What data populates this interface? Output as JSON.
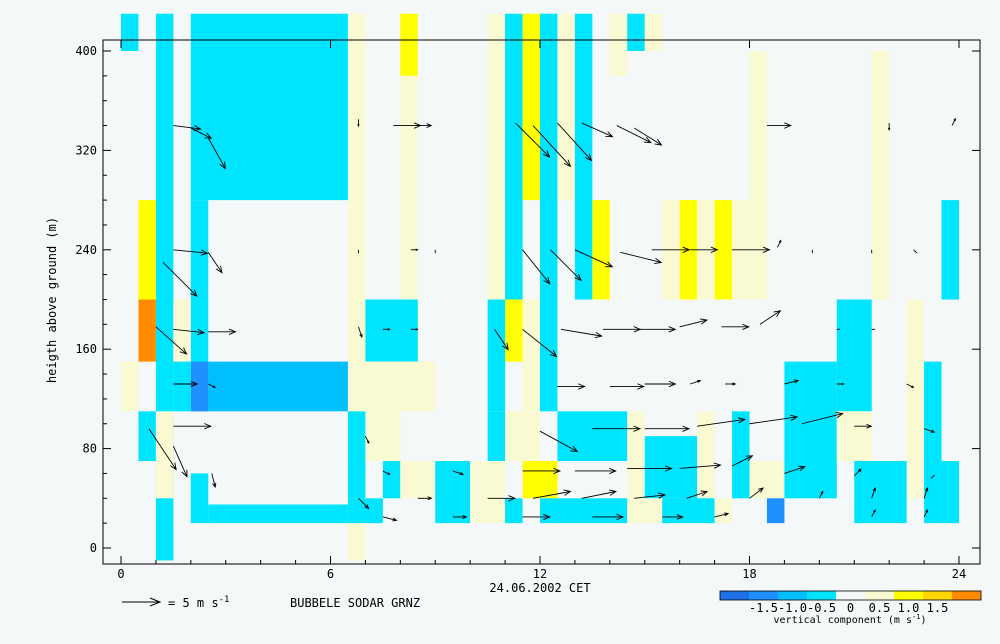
{
  "chart_data": {
    "type": "heatmap",
    "title": "",
    "xlabel": "24.06.2002 CET",
    "ylabel": "heigth above ground (m)",
    "xlim": [
      -0.5,
      24.5
    ],
    "ylim": [
      -10,
      410
    ],
    "x_ticks": [
      0,
      6,
      12,
      18,
      24
    ],
    "y_ticks": [
      0,
      80,
      160,
      240,
      320,
      400
    ],
    "footer_left": "BUBBELE SODAR GRNZ",
    "vector_key": {
      "label": "= 5 m s",
      "superscript": "-1",
      "magnitude": 5
    },
    "colorbar": {
      "label": "vertical component (m s",
      "label_superscript": "-1",
      "label_suffix": ")",
      "tick_labels": [
        "-1.5",
        "-1.0",
        "-0.5",
        "0",
        "0.5",
        "1.0",
        "1.5"
      ],
      "bins": [
        {
          "max": -1.75,
          "color": "#1f6fe8"
        },
        {
          "max": -1.25,
          "color": "#1e90ff"
        },
        {
          "max": -0.75,
          "color": "#00bfff"
        },
        {
          "max": -0.25,
          "color": "#00e5ff"
        },
        {
          "max": 0.25,
          "color": "#f4f8f8"
        },
        {
          "max": 0.75,
          "color": "#fafad2"
        },
        {
          "max": 1.25,
          "color": "#ffff00"
        },
        {
          "max": 1.75,
          "color": "#ffd700"
        },
        {
          "max": 99,
          "color": "#ff8c00"
        }
      ],
      "swatch_colors": [
        "#1f6fe8",
        "#1e90ff",
        "#00bfff",
        "#00e5ff",
        "#f4f8f8",
        "#fafad2",
        "#ffff00",
        "#ffd700",
        "#ff8c00"
      ]
    },
    "vertical_component_cells": [
      {
        "t0": 0.0,
        "t1": 0.5,
        "z0": 400,
        "z1": 430,
        "w": -0.6
      },
      {
        "t0": 0.5,
        "t1": 1.0,
        "z0": 400,
        "z1": 430,
        "w": 0.0
      },
      {
        "t0": 1.0,
        "t1": 1.5,
        "z0": -10,
        "z1": 430,
        "w": -0.6
      },
      {
        "t0": 2.0,
        "t1": 6.5,
        "z0": 280,
        "z1": 430,
        "w": -0.6
      },
      {
        "t0": 2.0,
        "t1": 2.5,
        "z0": 110,
        "z1": 280,
        "w": -0.6
      },
      {
        "t0": 0.5,
        "t1": 1.0,
        "z0": 200,
        "z1": 280,
        "w": 1.0
      },
      {
        "t0": 0.5,
        "t1": 1.0,
        "z0": 150,
        "z1": 200,
        "w": 2.0
      },
      {
        "t0": 1.5,
        "t1": 2.0,
        "z0": 150,
        "z1": 200,
        "w": 0.5
      },
      {
        "t0": 2.0,
        "t1": 2.5,
        "z0": 110,
        "z1": 150,
        "w": -1.5
      },
      {
        "t0": 2.5,
        "t1": 6.5,
        "z0": 110,
        "z1": 150,
        "w": -1.0
      },
      {
        "t0": 1.5,
        "t1": 2.0,
        "z0": 110,
        "z1": 150,
        "w": -0.6
      },
      {
        "t0": 0.0,
        "t1": 0.5,
        "z0": 110,
        "z1": 150,
        "w": 0.5
      },
      {
        "t0": 0.5,
        "t1": 1.0,
        "z0": 70,
        "z1": 110,
        "w": -0.6
      },
      {
        "t0": 1.0,
        "t1": 1.5,
        "z0": 40,
        "z1": 110,
        "w": 0.5
      },
      {
        "t0": 2.0,
        "t1": 2.5,
        "z0": 20,
        "z1": 60,
        "w": -0.6
      },
      {
        "t0": 2.5,
        "t1": 6.5,
        "z0": 20,
        "z1": 35,
        "w": -0.6
      },
      {
        "t0": 6.5,
        "t1": 7.0,
        "z0": -10,
        "z1": 430,
        "w": 0.5
      },
      {
        "t0": 7.0,
        "t1": 8.0,
        "z0": -10,
        "z1": 430,
        "w": 0.0
      },
      {
        "t0": 8.0,
        "t1": 8.5,
        "z0": 380,
        "z1": 430,
        "w": 1.0
      },
      {
        "t0": 8.0,
        "t1": 8.5,
        "z0": 150,
        "z1": 380,
        "w": 0.5
      },
      {
        "t0": 7.0,
        "t1": 8.5,
        "z0": 150,
        "z1": 200,
        "w": -0.6
      },
      {
        "t0": 6.5,
        "t1": 9.0,
        "z0": 110,
        "z1": 150,
        "w": 0.5
      },
      {
        "t0": 6.5,
        "t1": 7.0,
        "z0": 40,
        "z1": 110,
        "w": -0.6
      },
      {
        "t0": 7.0,
        "t1": 8.0,
        "z0": 70,
        "z1": 110,
        "w": 0.5
      },
      {
        "t0": 6.5,
        "t1": 7.5,
        "z0": 20,
        "z1": 40,
        "w": -0.6
      },
      {
        "t0": 7.5,
        "t1": 8.0,
        "z0": 40,
        "z1": 70,
        "w": -0.6
      },
      {
        "t0": 8.0,
        "t1": 9.0,
        "z0": 40,
        "z1": 70,
        "w": 0.5
      },
      {
        "t0": 9.0,
        "t1": 10.0,
        "z0": 20,
        "z1": 70,
        "w": -0.6
      },
      {
        "t0": 10.5,
        "t1": 11.0,
        "z0": 200,
        "z1": 430,
        "w": 0.5
      },
      {
        "t0": 11.0,
        "t1": 11.5,
        "z0": 200,
        "z1": 430,
        "w": -0.6
      },
      {
        "t0": 11.5,
        "t1": 12.0,
        "z0": 280,
        "z1": 430,
        "w": 1.0
      },
      {
        "t0": 12.0,
        "t1": 12.5,
        "z0": 110,
        "z1": 430,
        "w": -0.6
      },
      {
        "t0": 12.5,
        "t1": 13.0,
        "z0": 280,
        "z1": 430,
        "w": 0.5
      },
      {
        "t0": 13.0,
        "t1": 13.5,
        "z0": 200,
        "z1": 430,
        "w": -0.6
      },
      {
        "t0": 14.0,
        "t1": 14.5,
        "z0": 380,
        "z1": 430,
        "w": 0.5
      },
      {
        "t0": 14.5,
        "t1": 15.0,
        "z0": 400,
        "z1": 430,
        "w": -0.6
      },
      {
        "t0": 15.0,
        "t1": 15.5,
        "z0": 400,
        "z1": 430,
        "w": 0.5
      },
      {
        "t0": 13.5,
        "t1": 14.0,
        "z0": 200,
        "z1": 280,
        "w": 1.0
      },
      {
        "t0": 11.0,
        "t1": 11.5,
        "z0": 150,
        "z1": 200,
        "w": 1.0
      },
      {
        "t0": 10.5,
        "t1": 11.0,
        "z0": 110,
        "z1": 200,
        "w": -0.6
      },
      {
        "t0": 11.5,
        "t1": 12.0,
        "z0": 110,
        "z1": 200,
        "w": 0.5
      },
      {
        "t0": 16.0,
        "t1": 16.5,
        "z0": 200,
        "z1": 280,
        "w": 1.0
      },
      {
        "t0": 17.0,
        "t1": 17.5,
        "z0": 200,
        "z1": 280,
        "w": 1.0
      },
      {
        "t0": 15.5,
        "t1": 16.0,
        "z0": 200,
        "z1": 280,
        "w": 0.5
      },
      {
        "t0": 16.5,
        "t1": 17.0,
        "z0": 200,
        "z1": 280,
        "w": 0.5
      },
      {
        "t0": 17.5,
        "t1": 18.0,
        "z0": 200,
        "z1": 280,
        "w": 0.5
      },
      {
        "t0": 18.0,
        "t1": 18.5,
        "z0": 200,
        "z1": 400,
        "w": 0.5
      },
      {
        "t0": 21.5,
        "t1": 22.0,
        "z0": 200,
        "z1": 400,
        "w": 0.5
      },
      {
        "t0": 23.5,
        "t1": 24.0,
        "z0": 200,
        "z1": 280,
        "w": -0.6
      },
      {
        "t0": 20.5,
        "t1": 21.5,
        "z0": 110,
        "z1": 200,
        "w": -0.6
      },
      {
        "t0": 22.5,
        "t1": 23.0,
        "z0": 40,
        "z1": 200,
        "w": 0.5
      },
      {
        "t0": 10.5,
        "t1": 11.0,
        "z0": 70,
        "z1": 110,
        "w": -0.6
      },
      {
        "t0": 11.0,
        "t1": 12.0,
        "z0": 70,
        "z1": 110,
        "w": 0.5
      },
      {
        "t0": 12.5,
        "t1": 14.5,
        "z0": 70,
        "z1": 110,
        "w": -0.6
      },
      {
        "t0": 14.5,
        "t1": 15.0,
        "z0": 40,
        "z1": 110,
        "w": 0.5
      },
      {
        "t0": 15.0,
        "t1": 16.5,
        "z0": 40,
        "z1": 90,
        "w": -0.6
      },
      {
        "t0": 16.5,
        "t1": 17.0,
        "z0": 40,
        "z1": 110,
        "w": 0.5
      },
      {
        "t0": 17.5,
        "t1": 18.0,
        "z0": 40,
        "z1": 110,
        "w": -0.6
      },
      {
        "t0": 18.0,
        "t1": 19.0,
        "z0": 40,
        "z1": 70,
        "w": 0.5
      },
      {
        "t0": 19.0,
        "t1": 20.5,
        "z0": 40,
        "z1": 150,
        "w": -0.6
      },
      {
        "t0": 20.5,
        "t1": 21.5,
        "z0": 70,
        "z1": 110,
        "w": 0.5
      },
      {
        "t0": 21.0,
        "t1": 22.5,
        "z0": 20,
        "z1": 70,
        "w": -0.6
      },
      {
        "t0": 23.0,
        "t1": 23.5,
        "z0": 20,
        "z1": 150,
        "w": -0.6
      },
      {
        "t0": 23.5,
        "t1": 24.0,
        "z0": 20,
        "z1": 70,
        "w": -0.6
      },
      {
        "t0": 11.5,
        "t1": 12.5,
        "z0": 40,
        "z1": 70,
        "w": 1.0
      },
      {
        "t0": 12.0,
        "t1": 12.5,
        "z0": 20,
        "z1": 40,
        "w": -0.6
      },
      {
        "t0": 12.5,
        "t1": 14.5,
        "z0": 20,
        "z1": 40,
        "w": -0.6
      },
      {
        "t0": 14.5,
        "t1": 15.5,
        "z0": 20,
        "z1": 40,
        "w": 0.5
      },
      {
        "t0": 15.5,
        "t1": 17.0,
        "z0": 20,
        "z1": 40,
        "w": -0.6
      },
      {
        "t0": 17.0,
        "t1": 17.5,
        "z0": 20,
        "z1": 40,
        "w": 0.5
      },
      {
        "t0": 18.5,
        "t1": 19.0,
        "z0": 20,
        "z1": 40,
        "w": -1.5
      },
      {
        "t0": 10.0,
        "t1": 11.0,
        "z0": 20,
        "z1": 70,
        "w": 0.5
      },
      {
        "t0": 11.0,
        "t1": 11.5,
        "z0": 20,
        "z1": 40,
        "w": -0.6
      }
    ],
    "wind_vectors": [
      {
        "t": 1.5,
        "z": 340,
        "u": 0.8,
        "v": -0.1
      },
      {
        "t": 2.0,
        "z": 338,
        "u": 0.6,
        "v": -0.3
      },
      {
        "t": 2.5,
        "z": 330,
        "u": 0.5,
        "v": -0.9
      },
      {
        "t": 1.5,
        "z": 240,
        "u": 1.0,
        "v": -0.1
      },
      {
        "t": 2.5,
        "z": 238,
        "u": 0.4,
        "v": -0.6
      },
      {
        "t": 1.2,
        "z": 230,
        "u": 1.0,
        "v": -1.0
      },
      {
        "t": 1.5,
        "z": 176,
        "u": 0.9,
        "v": -0.1
      },
      {
        "t": 2.5,
        "z": 174,
        "u": 0.8,
        "v": 0.0
      },
      {
        "t": 1.0,
        "z": 178,
        "u": 0.9,
        "v": -0.8
      },
      {
        "t": 1.5,
        "z": 132,
        "u": 0.7,
        "v": 0.0
      },
      {
        "t": 2.5,
        "z": 132,
        "u": 0.2,
        "v": -0.1
      },
      {
        "t": 1.5,
        "z": 98,
        "u": 1.1,
        "v": 0.0
      },
      {
        "t": 0.8,
        "z": 96,
        "u": 0.8,
        "v": -1.2
      },
      {
        "t": 1.5,
        "z": 82,
        "u": 0.4,
        "v": -0.9
      },
      {
        "t": 2.6,
        "z": 60,
        "u": 0.1,
        "v": -0.4
      },
      {
        "t": 6.8,
        "z": 345,
        "u": 0.0,
        "v": -0.2
      },
      {
        "t": 7.8,
        "z": 340,
        "u": 0.8,
        "v": 0.0
      },
      {
        "t": 8.4,
        "z": 340,
        "u": 0.5,
        "v": 0.0
      },
      {
        "t": 11.3,
        "z": 342,
        "u": 1.0,
        "v": -1.0
      },
      {
        "t": 11.8,
        "z": 340,
        "u": 1.1,
        "v": -1.2
      },
      {
        "t": 12.5,
        "z": 342,
        "u": 1.0,
        "v": -1.1
      },
      {
        "t": 13.2,
        "z": 342,
        "u": 0.9,
        "v": -0.4
      },
      {
        "t": 14.2,
        "z": 340,
        "u": 1.0,
        "v": -0.5
      },
      {
        "t": 14.7,
        "z": 338,
        "u": 0.8,
        "v": -0.5
      },
      {
        "t": 18.5,
        "z": 340,
        "u": 0.7,
        "v": 0.0
      },
      {
        "t": 22.0,
        "z": 342,
        "u": 0.0,
        "v": -0.2
      },
      {
        "t": 23.8,
        "z": 340,
        "u": 0.1,
        "v": 0.2
      },
      {
        "t": 11.5,
        "z": 240,
        "u": 0.8,
        "v": -1.0
      },
      {
        "t": 12.3,
        "z": 240,
        "u": 0.9,
        "v": -0.9
      },
      {
        "t": 13.0,
        "z": 240,
        "u": 1.1,
        "v": -0.5
      },
      {
        "t": 14.3,
        "z": 238,
        "u": 1.2,
        "v": -0.3
      },
      {
        "t": 15.2,
        "z": 240,
        "u": 1.1,
        "v": 0.0
      },
      {
        "t": 16.3,
        "z": 240,
        "u": 0.8,
        "v": 0.0
      },
      {
        "t": 17.5,
        "z": 240,
        "u": 1.1,
        "v": 0.0
      },
      {
        "t": 18.8,
        "z": 242,
        "u": 0.1,
        "v": 0.2
      },
      {
        "t": 19.8,
        "z": 240,
        "u": 0.0,
        "v": -0.1
      },
      {
        "t": 21.5,
        "z": 240,
        "u": 0.0,
        "v": -0.1
      },
      {
        "t": 22.7,
        "z": 240,
        "u": 0.1,
        "v": -0.1
      },
      {
        "t": 6.8,
        "z": 240,
        "u": 0.0,
        "v": -0.1
      },
      {
        "t": 8.3,
        "z": 240,
        "u": 0.2,
        "v": 0.0
      },
      {
        "t": 9.0,
        "z": 240,
        "u": 0.0,
        "v": -0.1
      },
      {
        "t": 6.8,
        "z": 178,
        "u": 0.1,
        "v": -0.3
      },
      {
        "t": 7.5,
        "z": 176,
        "u": 0.2,
        "v": 0.0
      },
      {
        "t": 8.3,
        "z": 176,
        "u": 0.2,
        "v": 0.0
      },
      {
        "t": 10.7,
        "z": 176,
        "u": 0.4,
        "v": -0.6
      },
      {
        "t": 11.5,
        "z": 176,
        "u": 1.0,
        "v": -0.8
      },
      {
        "t": 12.6,
        "z": 176,
        "u": 1.2,
        "v": -0.2
      },
      {
        "t": 13.8,
        "z": 176,
        "u": 1.1,
        "v": 0.0
      },
      {
        "t": 14.8,
        "z": 176,
        "u": 1.1,
        "v": 0.0
      },
      {
        "t": 16.0,
        "z": 178,
        "u": 0.8,
        "v": 0.2
      },
      {
        "t": 17.2,
        "z": 178,
        "u": 0.8,
        "v": 0.0
      },
      {
        "t": 18.3,
        "z": 180,
        "u": 0.6,
        "v": 0.4
      },
      {
        "t": 20.5,
        "z": 176,
        "u": 0.1,
        "v": 0.0
      },
      {
        "t": 21.5,
        "z": 176,
        "u": 0.1,
        "v": 0.0
      },
      {
        "t": 12.5,
        "z": 130,
        "u": 0.8,
        "v": 0.0
      },
      {
        "t": 14.0,
        "z": 130,
        "u": 1.0,
        "v": 0.0
      },
      {
        "t": 15.0,
        "z": 132,
        "u": 0.9,
        "v": 0.0
      },
      {
        "t": 16.3,
        "z": 132,
        "u": 0.3,
        "v": 0.1
      },
      {
        "t": 17.3,
        "z": 132,
        "u": 0.3,
        "v": 0.0
      },
      {
        "t": 19.0,
        "z": 132,
        "u": 0.4,
        "v": 0.1
      },
      {
        "t": 20.5,
        "z": 132,
        "u": 0.2,
        "v": 0.0
      },
      {
        "t": 22.5,
        "z": 132,
        "u": 0.2,
        "v": -0.1
      },
      {
        "t": 12.0,
        "z": 94,
        "u": 1.1,
        "v": -0.6
      },
      {
        "t": 13.5,
        "z": 96,
        "u": 1.4,
        "v": 0.0
      },
      {
        "t": 15.0,
        "z": 96,
        "u": 1.3,
        "v": 0.0
      },
      {
        "t": 16.5,
        "z": 98,
        "u": 1.4,
        "v": 0.2
      },
      {
        "t": 18.0,
        "z": 100,
        "u": 1.4,
        "v": 0.2
      },
      {
        "t": 19.5,
        "z": 100,
        "u": 1.2,
        "v": 0.3
      },
      {
        "t": 21.0,
        "z": 98,
        "u": 0.5,
        "v": 0.0
      },
      {
        "t": 23.0,
        "z": 96,
        "u": 0.3,
        "v": -0.1
      },
      {
        "t": 7.0,
        "z": 90,
        "u": 0.1,
        "v": -0.2
      },
      {
        "t": 7.5,
        "z": 62,
        "u": 0.2,
        "v": -0.1
      },
      {
        "t": 9.5,
        "z": 62,
        "u": 0.3,
        "v": -0.1
      },
      {
        "t": 11.5,
        "z": 62,
        "u": 1.1,
        "v": 0.0
      },
      {
        "t": 13.0,
        "z": 62,
        "u": 1.2,
        "v": 0.0
      },
      {
        "t": 14.5,
        "z": 64,
        "u": 1.3,
        "v": 0.0
      },
      {
        "t": 16.0,
        "z": 64,
        "u": 1.2,
        "v": 0.1
      },
      {
        "t": 17.5,
        "z": 66,
        "u": 0.6,
        "v": 0.3
      },
      {
        "t": 19.0,
        "z": 60,
        "u": 0.6,
        "v": 0.2
      },
      {
        "t": 21.0,
        "z": 58,
        "u": 0.2,
        "v": 0.2
      },
      {
        "t": 23.2,
        "z": 56,
        "u": 0.1,
        "v": 0.1
      },
      {
        "t": 6.8,
        "z": 40,
        "u": 0.3,
        "v": -0.3
      },
      {
        "t": 8.5,
        "z": 40,
        "u": 0.4,
        "v": 0.0
      },
      {
        "t": 10.5,
        "z": 40,
        "u": 0.8,
        "v": 0.0
      },
      {
        "t": 11.8,
        "z": 40,
        "u": 1.1,
        "v": 0.2
      },
      {
        "t": 13.2,
        "z": 40,
        "u": 1.0,
        "v": 0.2
      },
      {
        "t": 14.7,
        "z": 40,
        "u": 0.9,
        "v": 0.1
      },
      {
        "t": 16.2,
        "z": 40,
        "u": 0.6,
        "v": 0.2
      },
      {
        "t": 18.0,
        "z": 40,
        "u": 0.4,
        "v": 0.3
      },
      {
        "t": 20.0,
        "z": 40,
        "u": 0.1,
        "v": 0.2
      },
      {
        "t": 21.5,
        "z": 40,
        "u": 0.1,
        "v": 0.3
      },
      {
        "t": 23.0,
        "z": 40,
        "u": 0.1,
        "v": 0.3
      },
      {
        "t": 7.5,
        "z": 25,
        "u": 0.4,
        "v": -0.1
      },
      {
        "t": 9.5,
        "z": 25,
        "u": 0.4,
        "v": 0.0
      },
      {
        "t": 11.5,
        "z": 25,
        "u": 0.8,
        "v": 0.0
      },
      {
        "t": 13.5,
        "z": 25,
        "u": 0.9,
        "v": 0.0
      },
      {
        "t": 15.5,
        "z": 25,
        "u": 0.6,
        "v": 0.0
      },
      {
        "t": 17.0,
        "z": 25,
        "u": 0.4,
        "v": 0.1
      },
      {
        "t": 21.5,
        "z": 25,
        "u": 0.1,
        "v": 0.2
      },
      {
        "t": 23.0,
        "z": 25,
        "u": 0.1,
        "v": 0.2
      }
    ]
  }
}
